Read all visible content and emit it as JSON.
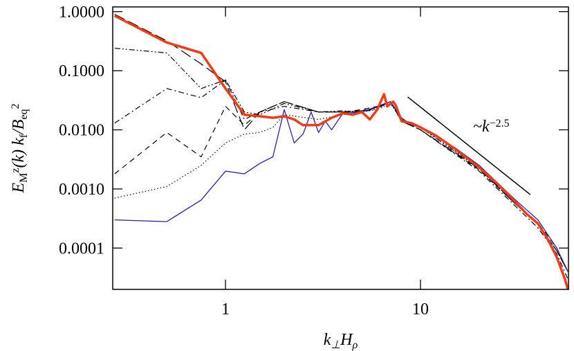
{
  "chart_data": {
    "type": "line",
    "xlabel": [
      "k",
      "⊥",
      "H",
      "ρ"
    ],
    "ylabel": [
      "E",
      "M",
      "z",
      "(k)  k",
      "f",
      "/B",
      "eq",
      "2"
    ],
    "annotation": [
      "~k",
      "−2.5"
    ],
    "log_x": true,
    "log_y": true,
    "xlim": [
      0.264,
      57.4
    ],
    "ylim": [
      2e-05,
      1.2
    ],
    "xticks": [
      1,
      10
    ],
    "yticks": [
      {
        "value": 1,
        "label": "1.0000"
      },
      {
        "value": 0.1,
        "label": "0.1000"
      },
      {
        "value": 0.01,
        "label": "0.0100"
      },
      {
        "value": 0.001,
        "label": "0.0010"
      },
      {
        "value": 0.0001,
        "label": "0.0001"
      }
    ],
    "reference_line": {
      "x": [
        8.6,
        36.6
      ],
      "values": [
        0.036,
        0.0008
      ],
      "color": "#000000"
    },
    "series": [
      {
        "color": "#000000",
        "style": "dotted",
        "x": [
          0.27,
          0.5,
          0.75,
          1.0,
          1.25,
          1.5,
          1.75,
          2,
          3,
          4,
          5,
          6,
          7,
          8,
          10,
          20,
          30,
          40,
          50,
          57
        ],
        "values": [
          0.0007,
          0.0011,
          0.0025,
          0.006,
          0.0085,
          0.009,
          0.011,
          0.018,
          0.015,
          0.018,
          0.02,
          0.022,
          0.028,
          0.015,
          0.011,
          0.0022,
          0.0006,
          0.00025,
          9e-05,
          4e-05
        ]
      },
      {
        "color": "#000000",
        "style": "dashed",
        "x": [
          0.27,
          0.5,
          0.75,
          1.0,
          1.25,
          1.5,
          2,
          3,
          4,
          5,
          6,
          7,
          8,
          10,
          20,
          30,
          40,
          50,
          57
        ],
        "values": [
          0.0018,
          0.009,
          0.0035,
          0.025,
          0.012,
          0.02,
          0.03,
          0.02,
          0.02,
          0.022,
          0.025,
          0.03,
          0.014,
          0.01,
          0.0021,
          0.0006,
          0.00027,
          0.0001,
          4e-05
        ]
      },
      {
        "color": "#000000",
        "style": "dashdot",
        "x": [
          0.27,
          0.5,
          0.75,
          1.0,
          1.25,
          1.5,
          2,
          3,
          4,
          5,
          6,
          7,
          8,
          10,
          20,
          30,
          40,
          50,
          57
        ],
        "values": [
          0.013,
          0.05,
          0.035,
          0.07,
          0.015,
          0.02,
          0.025,
          0.02,
          0.02,
          0.02,
          0.024,
          0.03,
          0.014,
          0.01,
          0.002,
          0.00055,
          0.00022,
          8e-05,
          3e-05
        ]
      },
      {
        "color": "#000000",
        "style": "dashdotdot",
        "x": [
          0.27,
          0.5,
          0.75,
          1.0,
          1.25,
          1.5,
          2,
          3,
          4,
          5,
          6,
          7,
          8,
          10,
          20,
          30,
          40,
          50,
          57
        ],
        "values": [
          0.24,
          0.2,
          0.05,
          0.07,
          0.02,
          0.018,
          0.028,
          0.02,
          0.021,
          0.02,
          0.023,
          0.03,
          0.015,
          0.011,
          0.0023,
          0.0006,
          0.00026,
          9e-05,
          4e-05
        ]
      },
      {
        "color": "#000000",
        "style": "longdash",
        "x": [
          0.27,
          0.5,
          0.75,
          1.0,
          1.25,
          1.5,
          2,
          3,
          4,
          5,
          6,
          7,
          8,
          10,
          20,
          30,
          40,
          50,
          57
        ],
        "values": [
          0.9,
          0.32,
          0.13,
          0.065,
          0.01,
          0.02,
          0.03,
          0.02,
          0.02,
          0.021,
          0.024,
          0.03,
          0.014,
          0.01,
          0.0022,
          0.0006,
          0.00025,
          9e-05,
          4e-05
        ]
      },
      {
        "color": "#2a1fb0",
        "style": "solid",
        "width": 1.3,
        "x": [
          0.27,
          0.5,
          0.75,
          1.0,
          1.25,
          1.5,
          1.75,
          2.0,
          2.25,
          2.5,
          2.75,
          3.0,
          3.25,
          3.5,
          4,
          5,
          6,
          7,
          8,
          9,
          10,
          15,
          20,
          30,
          40,
          50,
          57
        ],
        "values": [
          0.0003,
          0.00028,
          0.00065,
          0.002,
          0.0018,
          0.0027,
          0.0035,
          0.022,
          0.006,
          0.0085,
          0.02,
          0.009,
          0.014,
          0.01,
          0.019,
          0.02,
          0.025,
          0.03,
          0.016,
          0.012,
          0.011,
          0.005,
          0.0025,
          0.0007,
          0.0003,
          0.0001,
          4e-05
        ]
      },
      {
        "color": "#f03c14",
        "style": "solid",
        "width": 3.5,
        "x": [
          0.27,
          0.5,
          0.75,
          1.0,
          1.25,
          1.5,
          1.75,
          2.0,
          2.25,
          2.5,
          3.0,
          3.5,
          4,
          4.5,
          5,
          5.5,
          6,
          6.5,
          6.75,
          7.25,
          7.5,
          8,
          9,
          10,
          12,
          15,
          20,
          25,
          30,
          35,
          40,
          45,
          50,
          55,
          57
        ],
        "values": [
          0.85,
          0.3,
          0.2,
          0.05,
          0.018,
          0.017,
          0.016,
          0.017,
          0.015,
          0.012,
          0.012,
          0.016,
          0.019,
          0.018,
          0.02,
          0.015,
          0.022,
          0.04,
          0.025,
          0.03,
          0.025,
          0.014,
          0.013,
          0.011,
          0.008,
          0.0048,
          0.0023,
          0.0012,
          0.00065,
          0.00038,
          0.00026,
          0.00014,
          7e-05,
          3e-05,
          2e-05
        ]
      }
    ]
  }
}
